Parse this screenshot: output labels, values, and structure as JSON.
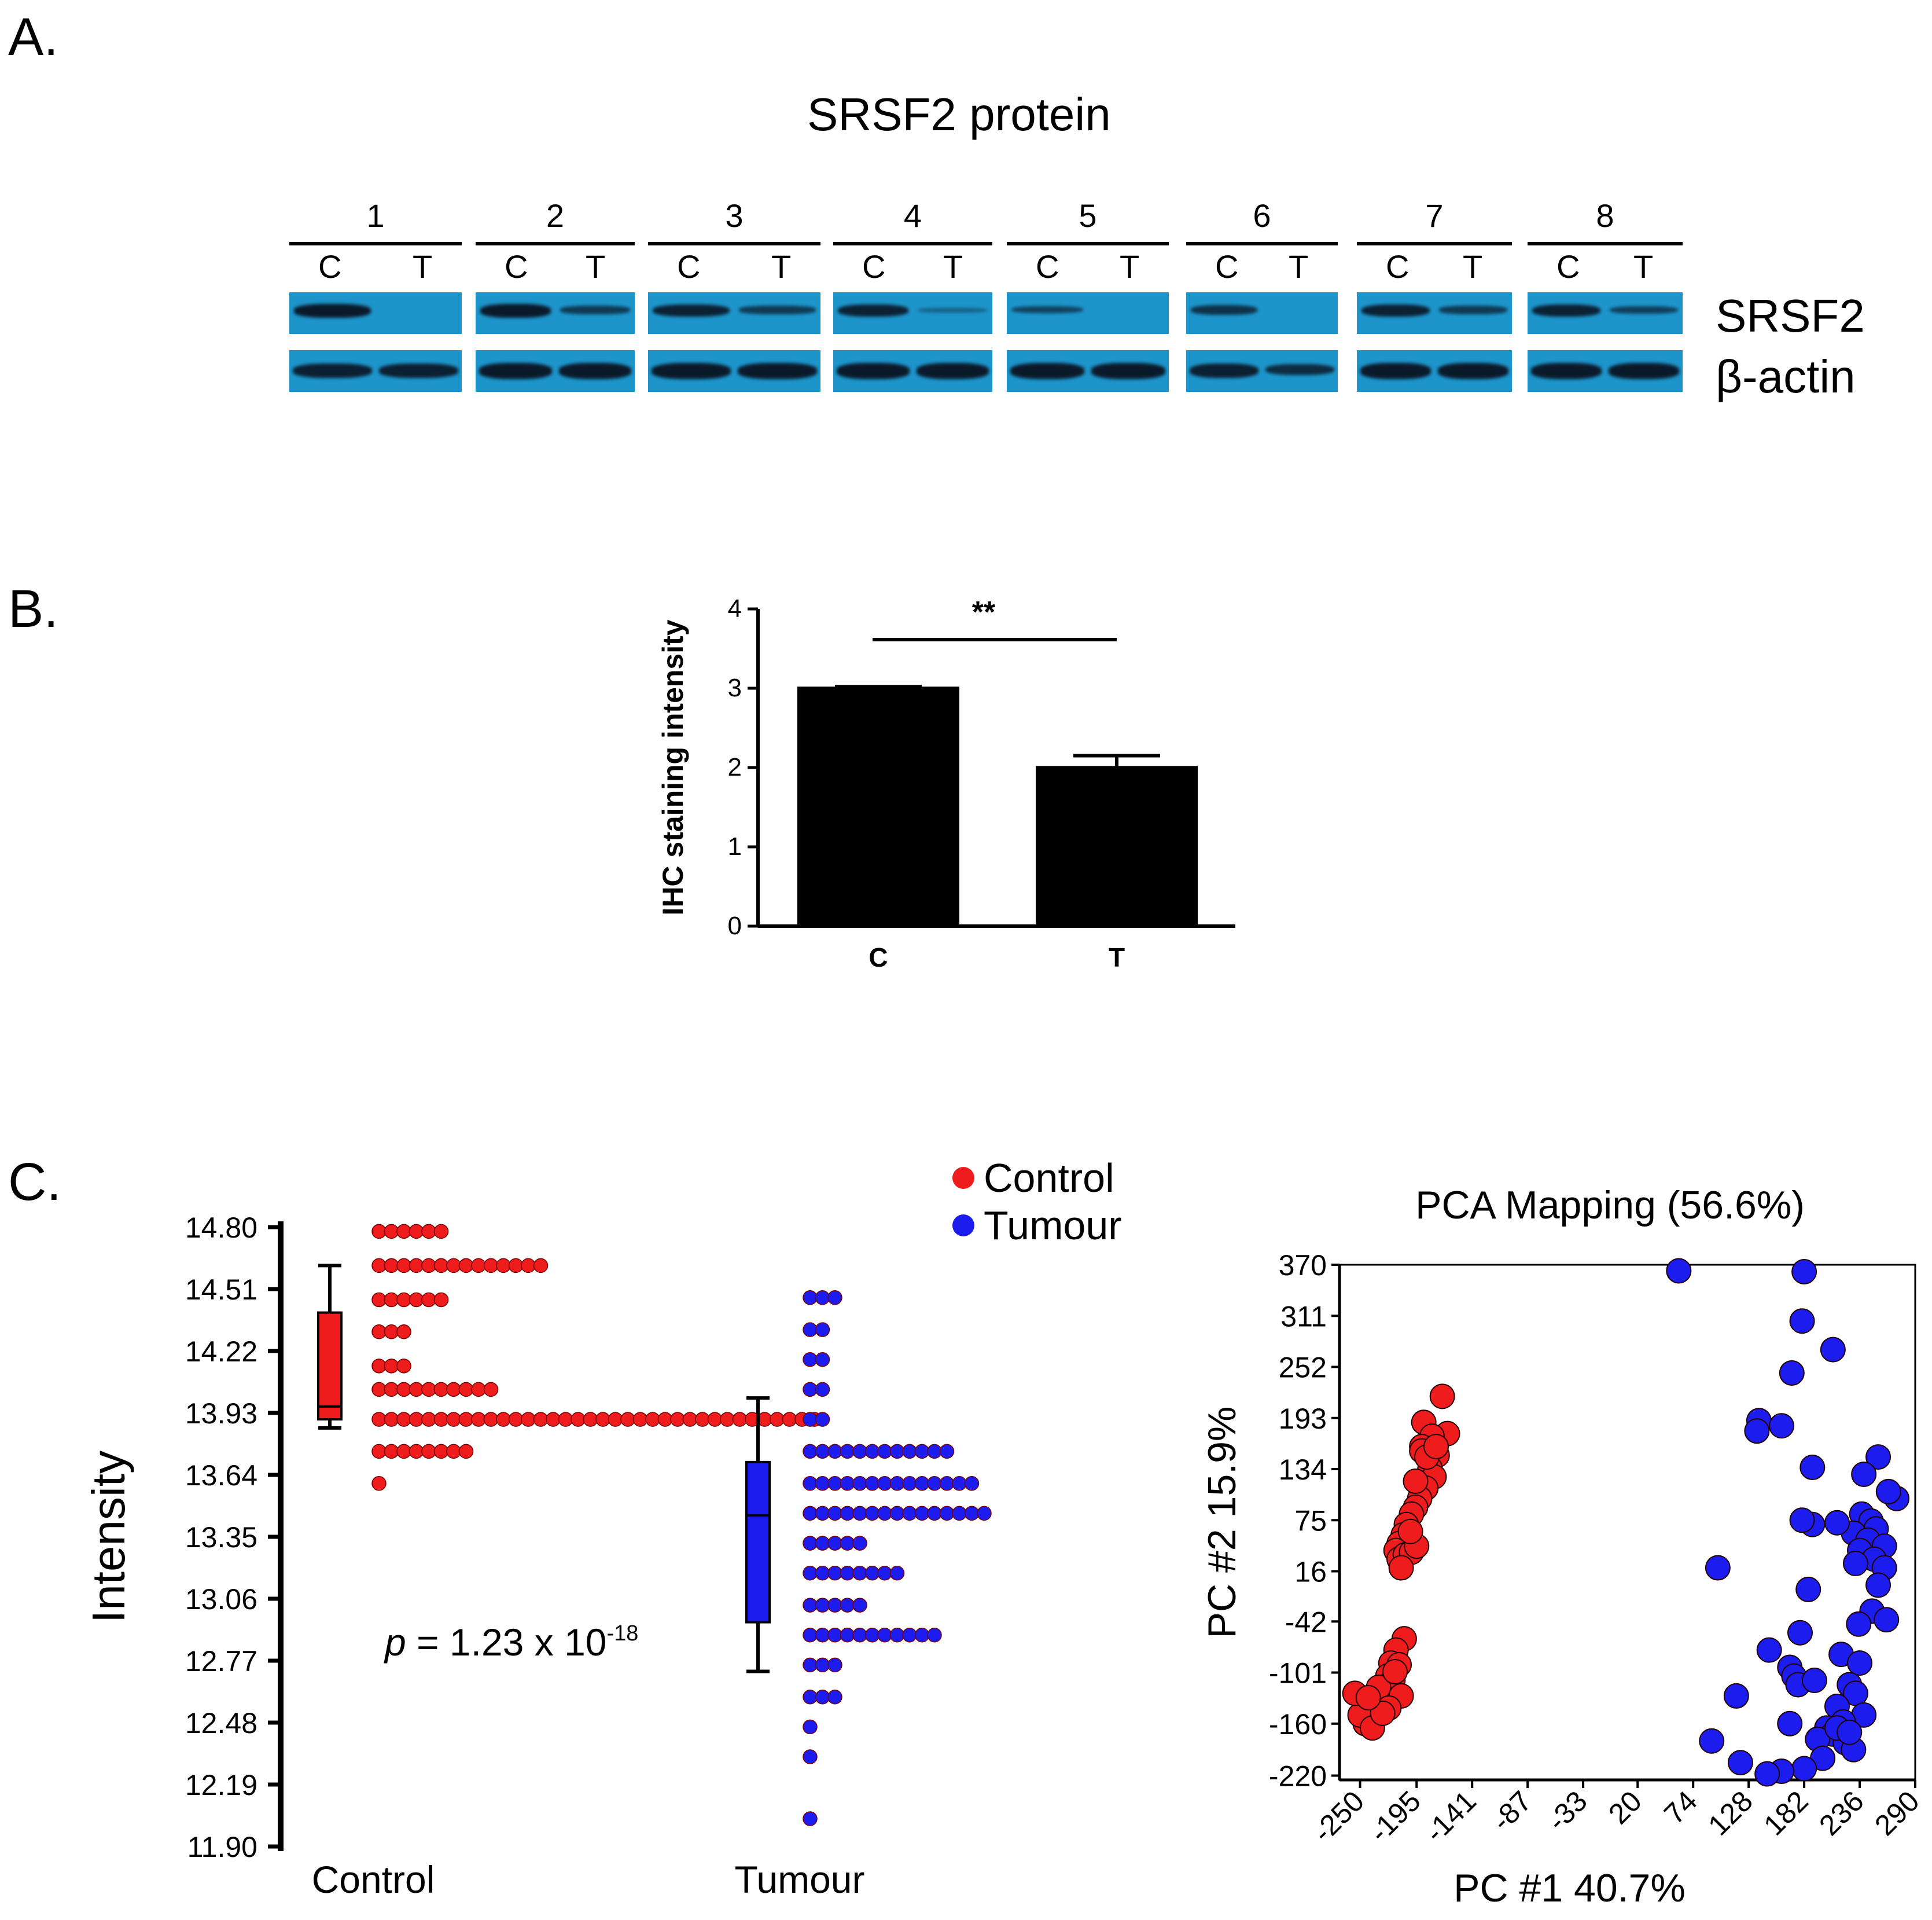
{
  "panelA": {
    "letter": "A.",
    "title": "SRSF2 protein",
    "lanes": [
      {
        "num": "1",
        "c": "C",
        "t": "T"
      },
      {
        "num": "2",
        "c": "C",
        "t": "T"
      },
      {
        "num": "3",
        "c": "C",
        "t": "T"
      },
      {
        "num": "4",
        "c": "C",
        "t": "T"
      },
      {
        "num": "5",
        "c": "C",
        "t": "T"
      },
      {
        "num": "6",
        "c": "C",
        "t": "T"
      },
      {
        "num": "7",
        "c": "C",
        "t": "T"
      },
      {
        "num": "8",
        "c": "C",
        "t": "T"
      }
    ],
    "row_labels": {
      "srsf2": "SRSF2",
      "actin": "β-actin"
    },
    "colors": {
      "blot_bg": "#1d95cb",
      "band": "#0b1a2a"
    }
  },
  "panelB": {
    "letter": "B.",
    "chart_data": {
      "type": "bar",
      "categories": [
        "C",
        "T"
      ],
      "values": [
        3.02,
        2.02
      ],
      "error_upper": [
        3.02,
        2.15
      ],
      "ylabel": "IHC staining intensity",
      "ylim": [
        0,
        4
      ],
      "yticks": [
        "0",
        "1",
        "2",
        "3",
        "4"
      ],
      "significance": "**",
      "bar_color": "#000000"
    }
  },
  "panelC": {
    "letter": "C.",
    "legend": [
      {
        "label": "Control",
        "color": "#ee1c1c"
      },
      {
        "label": "Tumour",
        "color": "#1c1cee"
      }
    ],
    "dotplot": {
      "chart_data": {
        "type": "scatter",
        "ylabel": "Intensity",
        "ylim": [
          11.9,
          14.8
        ],
        "yticks": [
          "14.80",
          "14.51",
          "14.22",
          "13.93",
          "13.64",
          "13.35",
          "13.06",
          "12.77",
          "12.48",
          "12.19",
          "11.90"
        ],
        "groups": [
          {
            "name": "Control",
            "color": "#ee1c1c",
            "box": {
              "whisker_low": 13.86,
              "q1": 13.9,
              "median": 13.96,
              "q3": 14.4,
              "whisker_high": 14.62
            },
            "bins": [
              {
                "y": 14.78,
                "count": 6
              },
              {
                "y": 14.62,
                "count": 14
              },
              {
                "y": 14.46,
                "count": 6
              },
              {
                "y": 14.31,
                "count": 3
              },
              {
                "y": 14.15,
                "count": 3
              },
              {
                "y": 14.04,
                "count": 10
              },
              {
                "y": 13.9,
                "count": 36
              },
              {
                "y": 13.75,
                "count": 8
              },
              {
                "y": 13.6,
                "count": 1
              }
            ]
          },
          {
            "name": "Tumour",
            "color": "#1c1cee",
            "box": {
              "whisker_low": 12.72,
              "q1": 12.95,
              "median": 13.45,
              "q3": 13.7,
              "whisker_high": 14.0
            },
            "bins": [
              {
                "y": 14.47,
                "count": 3
              },
              {
                "y": 14.32,
                "count": 2
              },
              {
                "y": 14.18,
                "count": 2
              },
              {
                "y": 14.04,
                "count": 2
              },
              {
                "y": 13.9,
                "count": 2
              },
              {
                "y": 13.75,
                "count": 12
              },
              {
                "y": 13.6,
                "count": 14
              },
              {
                "y": 13.46,
                "count": 15
              },
              {
                "y": 13.32,
                "count": 5
              },
              {
                "y": 13.18,
                "count": 8
              },
              {
                "y": 13.03,
                "count": 5
              },
              {
                "y": 12.89,
                "count": 11
              },
              {
                "y": 12.75,
                "count": 3
              },
              {
                "y": 12.6,
                "count": 3
              },
              {
                "y": 12.46,
                "count": 1
              },
              {
                "y": 12.32,
                "count": 1
              },
              {
                "y": 12.03,
                "count": 1
              }
            ]
          }
        ],
        "categories": [
          "Control",
          "Tumour"
        ],
        "pvalue_prefix": "p",
        "pvalue_text": " = 1.23 x 10",
        "pvalue_exp": "-18"
      }
    },
    "pca": {
      "chart_data": {
        "type": "scatter",
        "title": "PCA Mapping (56.6%)",
        "xlabel": "PC #1 40.7%",
        "ylabel": "PC #2 15.9%",
        "xlim": [
          -270,
          290
        ],
        "ylim": [
          -225,
          370
        ],
        "xticks": [
          "-250",
          "-195",
          "-141",
          "-87",
          "-33",
          "20",
          "74",
          "128",
          "182",
          "236",
          "290"
        ],
        "yticks": [
          "370",
          "311",
          "252",
          "193",
          "134",
          "75",
          "16",
          "-42",
          "-101",
          "-160",
          "-220"
        ],
        "series": [
          {
            "name": "Control",
            "color": "#ee1c1c",
            "points": [
              [
                -170,
                218
              ],
              [
                -165,
                175
              ],
              [
                -188,
                188
              ],
              [
                -180,
                172
              ],
              [
                -190,
                160
              ],
              [
                -175,
                150
              ],
              [
                -182,
                135
              ],
              [
                -178,
                125
              ],
              [
                -186,
                112
              ],
              [
                -192,
                100
              ],
              [
                -196,
                90
              ],
              [
                -200,
                82
              ],
              [
                -205,
                70
              ],
              [
                -208,
                58
              ],
              [
                -212,
                48
              ],
              [
                -215,
                40
              ],
              [
                -212,
                30
              ],
              [
                -206,
                35
              ],
              [
                -200,
                38
              ],
              [
                -210,
                20
              ],
              [
                -195,
                45
              ],
              [
                -190,
                155
              ],
              [
                -185,
                148
              ],
              [
                -176,
                160
              ],
              [
                -196,
                120
              ],
              [
                -201,
                62
              ],
              [
                -207,
                -62
              ],
              [
                -215,
                -75
              ],
              [
                -220,
                -90
              ],
              [
                -223,
                -105
              ],
              [
                -226,
                -120
              ],
              [
                -230,
                -130
              ],
              [
                -235,
                -140
              ],
              [
                -240,
                -155
              ],
              [
                -245,
                -160
              ],
              [
                -250,
                -150
              ],
              [
                -255,
                -125
              ],
              [
                -212,
                -92
              ],
              [
                -218,
                -110
              ],
              [
                -232,
                -118
              ],
              [
                -210,
                -128
              ],
              [
                -222,
                -142
              ],
              [
                -238,
                -165
              ],
              [
                -228,
                -148
              ],
              [
                -216,
                -100
              ],
              [
                -242,
                -130
              ]
            ]
          },
          {
            "name": "Tumour",
            "color": "#1c1cee",
            "points": [
              [
                60,
                363
              ],
              [
                182,
                362
              ],
              [
                180,
                305
              ],
              [
                210,
                272
              ],
              [
                170,
                245
              ],
              [
                138,
                190
              ],
              [
                160,
                184
              ],
              [
                136,
                178
              ],
              [
                190,
                136
              ],
              [
                254,
                148
              ],
              [
                272,
                100
              ],
              [
                264,
                108
              ],
              [
                240,
                128
              ],
              [
                238,
                82
              ],
              [
                247,
                74
              ],
              [
                230,
                60
              ],
              [
                214,
                72
              ],
              [
                190,
                70
              ],
              [
                252,
                65
              ],
              [
                244,
                52
              ],
              [
                260,
                45
              ],
              [
                236,
                40
              ],
              [
                250,
                30
              ],
              [
                232,
                25
              ],
              [
                260,
                20
              ],
              [
                254,
                0
              ],
              [
                248,
                -30
              ],
              [
                262,
                -40
              ],
              [
                235,
                -45
              ],
              [
                186,
                -5
              ],
              [
                98,
                20
              ],
              [
                148,
                -75
              ],
              [
                168,
                -95
              ],
              [
                172,
                -105
              ],
              [
                176,
                -115
              ],
              [
                218,
                -80
              ],
              [
                236,
                -90
              ],
              [
                226,
                -115
              ],
              [
                232,
                -125
              ],
              [
                214,
                -140
              ],
              [
                240,
                -150
              ],
              [
                220,
                -158
              ],
              [
                204,
                -165
              ],
              [
                210,
                -172
              ],
              [
                222,
                -182
              ],
              [
                195,
                -178
              ],
              [
                230,
                -190
              ],
              [
                200,
                -200
              ],
              [
                182,
                -212
              ],
              [
                160,
                -215
              ],
              [
                146,
                -218
              ],
              [
                168,
                -160
              ],
              [
                192,
                -110
              ],
              [
                116,
                -128
              ],
              [
                120,
                -205
              ],
              [
                92,
                -180
              ],
              [
                178,
                -55
              ],
              [
                180,
                75
              ],
              [
                214,
                -165
              ],
              [
                226,
                -170
              ]
            ]
          }
        ]
      }
    }
  }
}
